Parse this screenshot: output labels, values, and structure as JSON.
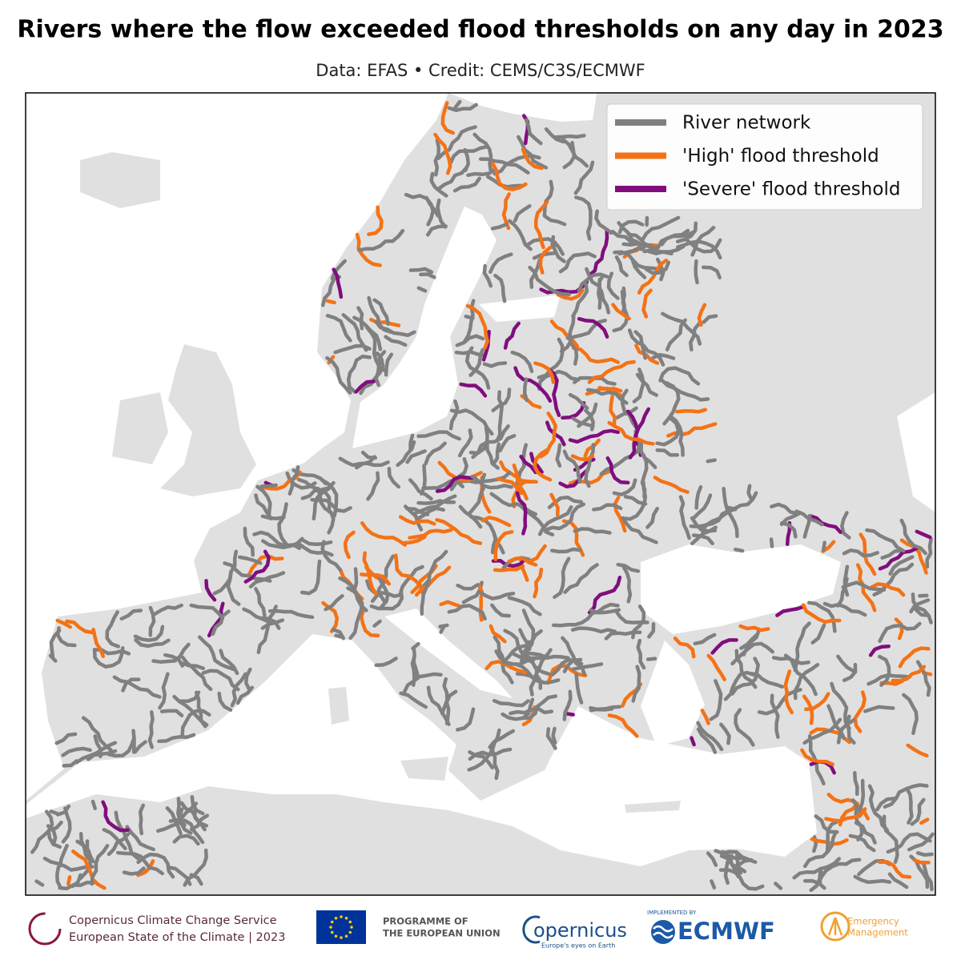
{
  "header": {
    "title": "Rivers where the flow exceeded flood thresholds on any day in 2023",
    "subtitle": "Data: EFAS • Credit: CEMS/C3S/ECMWF"
  },
  "legend": {
    "items": [
      {
        "label": "River network",
        "color": "#808080"
      },
      {
        "label": "'High' flood threshold",
        "color": "#f47216"
      },
      {
        "label": "'Severe' flood threshold",
        "color": "#800e7e"
      }
    ]
  },
  "footer": {
    "c3s": [
      "Copernicus Climate Change Service",
      "European State of the Climate | 2023"
    ],
    "eu": [
      "PROGRAMME OF",
      "THE EUROPEAN UNION"
    ],
    "copernicus": [
      "opernicus",
      "Europe's eyes on Earth"
    ],
    "ecmwf": [
      "IMPLEMENTED BY",
      "ECMWF"
    ],
    "emergency": [
      "Emergency",
      "Management"
    ]
  }
}
